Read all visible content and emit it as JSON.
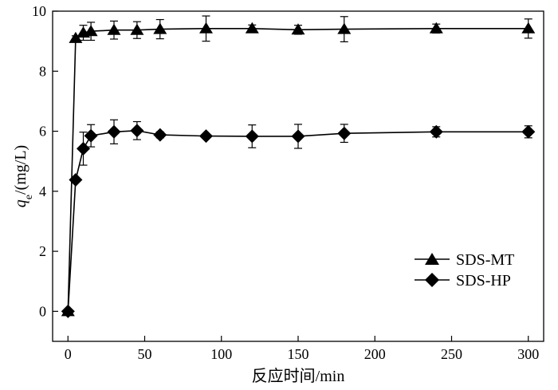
{
  "chart_data": {
    "type": "line",
    "title": "",
    "xlabel": "反应时间/min",
    "ylabel": {
      "var": "q",
      "sub": "e",
      "unit": "/(mg/L)"
    },
    "xlim": [
      -10,
      310
    ],
    "ylim": [
      -1,
      10
    ],
    "xticks": [
      0,
      50,
      100,
      150,
      200,
      250,
      300
    ],
    "yticks": [
      0,
      2,
      4,
      6,
      8,
      10
    ],
    "grid": false,
    "legend_position": "center-right",
    "series": [
      {
        "name": "SDS-MT",
        "marker": "triangle",
        "color": "#000000",
        "x": [
          0,
          5,
          10,
          15,
          30,
          45,
          60,
          90,
          120,
          150,
          180,
          240,
          300
        ],
        "y": [
          0,
          9.1,
          9.28,
          9.33,
          9.37,
          9.37,
          9.4,
          9.42,
          9.42,
          9.38,
          9.4,
          9.42,
          9.42
        ],
        "err": [
          0,
          0.08,
          0.25,
          0.3,
          0.3,
          0.28,
          0.32,
          0.42,
          0.12,
          0.15,
          0.42,
          0.15,
          0.32
        ]
      },
      {
        "name": "SDS-HP",
        "marker": "diamond",
        "color": "#000000",
        "x": [
          0,
          5,
          10,
          15,
          30,
          45,
          60,
          90,
          120,
          150,
          180,
          240,
          300
        ],
        "y": [
          0,
          4.38,
          5.42,
          5.85,
          5.98,
          6.02,
          5.88,
          5.84,
          5.83,
          5.83,
          5.93,
          5.98,
          5.98
        ],
        "err": [
          0,
          0.05,
          0.55,
          0.37,
          0.4,
          0.3,
          0.1,
          0.05,
          0.38,
          0.4,
          0.3,
          0.17,
          0.2
        ]
      }
    ]
  }
}
